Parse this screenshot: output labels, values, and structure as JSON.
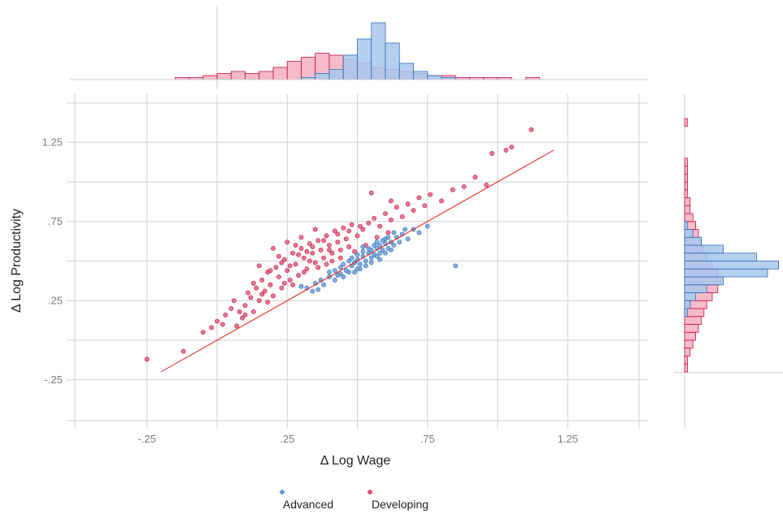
{
  "chart_data": {
    "type": "scatter",
    "xlabel": "Δ Log Wage",
    "ylabel": "Δ Log Productivity",
    "xlim": [
      -0.5,
      1.5
    ],
    "ylim": [
      -0.5,
      1.5
    ],
    "x_ticks": [
      -0.25,
      0.25,
      0.75,
      1.25
    ],
    "x_tick_labels": [
      "-.25",
      ".25",
      ".75",
      "1.25"
    ],
    "y_ticks": [
      -0.25,
      0.25,
      0.75,
      1.25
    ],
    "y_tick_labels": [
      "-.25",
      ".25",
      ".75",
      "1.25"
    ],
    "grid": true,
    "legend_position": "bottom",
    "colors": {
      "advanced_fill": "#6e9fd6",
      "advanced_edge": "#2e6fb8",
      "advanced_hist_fill": "#a8c8ec",
      "developing_fill": "#e0577a",
      "developing_edge": "#c8103c",
      "developing_hist_fill": "#f4b4c4",
      "fit_line": "#e8180c",
      "grid": "#cfcfcf"
    },
    "fit_line": {
      "x": [
        -0.2,
        1.2
      ],
      "y": [
        -0.2,
        1.2
      ]
    },
    "series": [
      {
        "name": "Advanced",
        "points": [
          [
            0.3,
            0.34
          ],
          [
            0.32,
            0.33
          ],
          [
            0.35,
            0.36
          ],
          [
            0.37,
            0.38
          ],
          [
            0.38,
            0.35
          ],
          [
            0.4,
            0.4
          ],
          [
            0.4,
            0.43
          ],
          [
            0.42,
            0.44
          ],
          [
            0.43,
            0.41
          ],
          [
            0.44,
            0.46
          ],
          [
            0.45,
            0.48
          ],
          [
            0.46,
            0.44
          ],
          [
            0.47,
            0.5
          ],
          [
            0.48,
            0.47
          ],
          [
            0.48,
            0.52
          ],
          [
            0.49,
            0.49
          ],
          [
            0.5,
            0.54
          ],
          [
            0.5,
            0.51
          ],
          [
            0.51,
            0.48
          ],
          [
            0.52,
            0.53
          ],
          [
            0.52,
            0.56
          ],
          [
            0.53,
            0.5
          ],
          [
            0.54,
            0.55
          ],
          [
            0.54,
            0.58
          ],
          [
            0.55,
            0.52
          ],
          [
            0.55,
            0.57
          ],
          [
            0.56,
            0.6
          ],
          [
            0.56,
            0.54
          ],
          [
            0.57,
            0.58
          ],
          [
            0.57,
            0.62
          ],
          [
            0.58,
            0.55
          ],
          [
            0.58,
            0.6
          ],
          [
            0.59,
            0.57
          ],
          [
            0.6,
            0.61
          ],
          [
            0.6,
            0.64
          ],
          [
            0.61,
            0.58
          ],
          [
            0.62,
            0.62
          ],
          [
            0.63,
            0.6
          ],
          [
            0.64,
            0.65
          ],
          [
            0.65,
            0.62
          ],
          [
            0.66,
            0.67
          ],
          [
            0.68,
            0.64
          ],
          [
            0.7,
            0.7
          ],
          [
            0.72,
            0.68
          ],
          [
            0.75,
            0.72
          ],
          [
            0.45,
            0.4
          ],
          [
            0.47,
            0.43
          ],
          [
            0.51,
            0.45
          ],
          [
            0.53,
            0.47
          ],
          [
            0.58,
            0.51
          ],
          [
            0.6,
            0.55
          ],
          [
            0.62,
            0.57
          ],
          [
            0.55,
            0.49
          ],
          [
            0.5,
            0.45
          ],
          [
            0.49,
            0.43
          ],
          [
            0.42,
            0.38
          ],
          [
            0.44,
            0.42
          ],
          [
            0.36,
            0.32
          ],
          [
            0.34,
            0.31
          ],
          [
            0.63,
            0.68
          ],
          [
            0.59,
            0.63
          ],
          [
            0.57,
            0.53
          ],
          [
            0.61,
            0.65
          ],
          [
            0.67,
            0.7
          ],
          [
            0.52,
            0.59
          ],
          [
            0.85,
            0.47
          ]
        ]
      },
      {
        "name": "Developing",
        "points": [
          [
            -0.25,
            -0.12
          ],
          [
            -0.12,
            -0.07
          ],
          [
            -0.05,
            0.05
          ],
          [
            0.0,
            0.12
          ],
          [
            -0.02,
            0.08
          ],
          [
            0.02,
            0.1
          ],
          [
            0.05,
            0.2
          ],
          [
            0.03,
            0.16
          ],
          [
            0.08,
            0.18
          ],
          [
            0.06,
            0.25
          ],
          [
            0.09,
            0.14
          ],
          [
            0.1,
            0.22
          ],
          [
            0.11,
            0.3
          ],
          [
            0.12,
            0.27
          ],
          [
            0.13,
            0.18
          ],
          [
            0.14,
            0.33
          ],
          [
            0.15,
            0.25
          ],
          [
            0.16,
            0.38
          ],
          [
            0.17,
            0.31
          ],
          [
            0.18,
            0.43
          ],
          [
            0.19,
            0.35
          ],
          [
            0.2,
            0.28
          ],
          [
            0.21,
            0.46
          ],
          [
            0.22,
            0.4
          ],
          [
            0.23,
            0.33
          ],
          [
            0.24,
            0.51
          ],
          [
            0.25,
            0.44
          ],
          [
            0.26,
            0.38
          ],
          [
            0.27,
            0.55
          ],
          [
            0.28,
            0.48
          ],
          [
            0.29,
            0.41
          ],
          [
            0.3,
            0.58
          ],
          [
            0.31,
            0.52
          ],
          [
            0.32,
            0.45
          ],
          [
            0.33,
            0.61
          ],
          [
            0.34,
            0.55
          ],
          [
            0.35,
            0.49
          ],
          [
            0.36,
            0.63
          ],
          [
            0.37,
            0.57
          ],
          [
            0.38,
            0.52
          ],
          [
            0.39,
            0.66
          ],
          [
            0.4,
            0.6
          ],
          [
            0.41,
            0.55
          ],
          [
            0.42,
            0.69
          ],
          [
            0.43,
            0.62
          ],
          [
            0.44,
            0.57
          ],
          [
            0.45,
            0.71
          ],
          [
            0.46,
            0.64
          ],
          [
            0.47,
            0.59
          ],
          [
            0.48,
            0.73
          ],
          [
            0.5,
            0.66
          ],
          [
            0.52,
            0.7
          ],
          [
            0.54,
            0.74
          ],
          [
            0.56,
            0.77
          ],
          [
            0.58,
            0.72
          ],
          [
            0.6,
            0.8
          ],
          [
            0.62,
            0.76
          ],
          [
            0.64,
            0.84
          ],
          [
            0.66,
            0.78
          ],
          [
            0.68,
            0.86
          ],
          [
            0.7,
            0.82
          ],
          [
            0.72,
            0.9
          ],
          [
            0.74,
            0.85
          ],
          [
            0.76,
            0.92
          ],
          [
            0.8,
            0.88
          ],
          [
            0.84,
            0.95
          ],
          [
            0.88,
            0.97
          ],
          [
            0.92,
            1.03
          ],
          [
            0.96,
            0.98
          ],
          [
            0.98,
            1.18
          ],
          [
            1.03,
            1.2
          ],
          [
            1.05,
            1.22
          ],
          [
            1.12,
            1.33
          ],
          [
            0.55,
            0.93
          ],
          [
            0.62,
            0.88
          ],
          [
            0.2,
            0.58
          ],
          [
            0.25,
            0.62
          ],
          [
            0.3,
            0.65
          ],
          [
            0.35,
            0.7
          ],
          [
            0.15,
            0.47
          ],
          [
            0.22,
            0.53
          ],
          [
            0.28,
            0.6
          ],
          [
            0.33,
            0.5
          ],
          [
            0.27,
            0.35
          ],
          [
            0.18,
            0.24
          ],
          [
            0.1,
            0.16
          ],
          [
            0.07,
            0.09
          ],
          [
            0.31,
            0.43
          ],
          [
            0.36,
            0.46
          ],
          [
            0.41,
            0.5
          ],
          [
            0.44,
            0.52
          ],
          [
            0.49,
            0.56
          ],
          [
            0.53,
            0.6
          ],
          [
            0.57,
            0.65
          ],
          [
            0.61,
            0.68
          ],
          [
            0.39,
            0.48
          ],
          [
            0.26,
            0.47
          ],
          [
            0.23,
            0.49
          ],
          [
            0.19,
            0.44
          ],
          [
            0.24,
            0.36
          ],
          [
            0.29,
            0.54
          ],
          [
            0.34,
            0.59
          ],
          [
            0.38,
            0.63
          ],
          [
            0.43,
            0.67
          ],
          [
            0.47,
            0.69
          ],
          [
            0.51,
            0.72
          ],
          [
            0.4,
            0.57
          ],
          [
            0.32,
            0.56
          ],
          [
            0.13,
            0.36
          ],
          [
            0.16,
            0.29
          ]
        ]
      }
    ],
    "histogram_top": {
      "bins": [
        -0.45,
        -0.4,
        -0.35,
        -0.3,
        -0.25,
        -0.2,
        -0.15,
        -0.1,
        -0.05,
        0.0,
        0.05,
        0.1,
        0.15,
        0.2,
        0.25,
        0.3,
        0.35,
        0.4,
        0.45,
        0.5,
        0.55,
        0.6,
        0.65,
        0.7,
        0.75,
        0.8,
        0.85,
        0.9,
        0.95,
        1.0,
        1.05,
        1.1,
        1.15
      ],
      "advanced": [
        0,
        0,
        0,
        0,
        0,
        0,
        0,
        0,
        0,
        0,
        0,
        0,
        0,
        0,
        0,
        1,
        3,
        5,
        12,
        20,
        28,
        18,
        8,
        4,
        2,
        1,
        0,
        0,
        0,
        0,
        0,
        0,
        0
      ],
      "developing": [
        0,
        0,
        0,
        0,
        0,
        0,
        1,
        1,
        2,
        3,
        4,
        3,
        4,
        6,
        9,
        11,
        13,
        12,
        10,
        8,
        6,
        5,
        4,
        3,
        2,
        2,
        1,
        1,
        1,
        1,
        0,
        1,
        0
      ]
    },
    "histogram_right": {
      "bins": [
        -0.2,
        -0.15,
        -0.1,
        -0.05,
        0.0,
        0.05,
        0.1,
        0.15,
        0.2,
        0.25,
        0.3,
        0.35,
        0.4,
        0.45,
        0.5,
        0.55,
        0.6,
        0.65,
        0.7,
        0.75,
        0.8,
        0.85,
        0.9,
        0.95,
        1.0,
        1.05,
        1.1,
        1.15,
        1.2,
        1.25,
        1.3,
        1.35
      ],
      "advanced": [
        0,
        0,
        0,
        0,
        0,
        0,
        0,
        1,
        2,
        4,
        8,
        14,
        30,
        34,
        26,
        14,
        6,
        3,
        1,
        0,
        0,
        0,
        0,
        0,
        0,
        0,
        0,
        0,
        0,
        0,
        0,
        0
      ],
      "developing": [
        1,
        1,
        2,
        3,
        4,
        5,
        6,
        7,
        8,
        10,
        12,
        13,
        12,
        10,
        8,
        7,
        6,
        5,
        4,
        3,
        2,
        2,
        1,
        1,
        1,
        1,
        1,
        0,
        0,
        0,
        0,
        1
      ]
    }
  }
}
